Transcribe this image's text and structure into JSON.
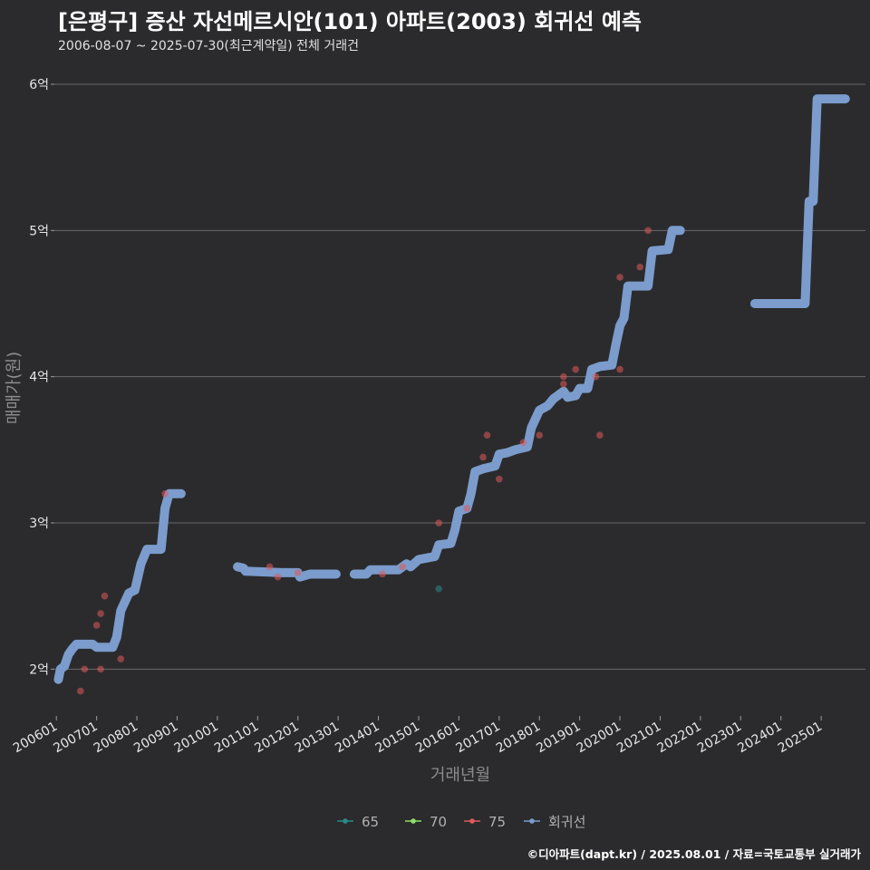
{
  "header": {
    "title": "[은평구] 증산 자선메르시안(101) 아파트(2003) 회귀선 예측",
    "subtitle": "2006-08-07 ~ 2025-07-30(최근계약일) 전체 거래건"
  },
  "footer": {
    "credit": "©디아파트(dapt.kr) / 2025.08.01 / 자료=국토교통부 실거래가"
  },
  "colors": {
    "background": "#2b2b2d",
    "grid": "#6a6a6c",
    "series_65": "#2a8a8a",
    "series_70": "#8ee06a",
    "series_75": "#e05a5a",
    "regression": "#7b9ccc"
  },
  "chart_data": {
    "type": "scatter",
    "title": "[은평구] 증산 자선메르시안(101) 아파트(2003) 회귀선 예측",
    "xlabel": "거래년월",
    "ylabel": "매매가(원)",
    "x_unit": "year",
    "xlim": [
      2005.95,
      2026.1
    ],
    "ylim": [
      1.68,
      6.13
    ],
    "y_ticks": [
      2,
      3,
      4,
      5,
      6
    ],
    "y_tick_labels": [
      "2억",
      "3억",
      "4억",
      "5억",
      "6억"
    ],
    "x_ticks": [
      2006,
      2007,
      2008,
      2009,
      2010,
      2011,
      2012,
      2013,
      2014,
      2015,
      2016,
      2017,
      2018,
      2019,
      2020,
      2021,
      2022,
      2023,
      2024,
      2025
    ],
    "x_tick_labels": [
      "200601",
      "200701",
      "200801",
      "200901",
      "201001",
      "201101",
      "201201",
      "201301",
      "201401",
      "201501",
      "201601",
      "201701",
      "201801",
      "201901",
      "202001",
      "202101",
      "202201",
      "202301",
      "202401",
      "202501"
    ],
    "legend": {
      "position": "bottom",
      "entries": [
        {
          "key": "65",
          "label": "65",
          "color": "#2a8a8a"
        },
        {
          "key": "70",
          "label": "70",
          "color": "#8ee06a"
        },
        {
          "key": "75",
          "label": "75",
          "color": "#e05a5a"
        },
        {
          "key": "reg",
          "label": "회귀선",
          "color": "#7b9ccc"
        }
      ]
    },
    "series": [
      {
        "name": "65",
        "points": [
          [
            2015.5,
            2.55
          ]
        ]
      },
      {
        "name": "70",
        "points": []
      },
      {
        "name": "75",
        "points": [
          [
            2006.6,
            1.85
          ],
          [
            2006.7,
            2.0
          ],
          [
            2007.0,
            2.3
          ],
          [
            2007.1,
            2.38
          ],
          [
            2007.1,
            2.0
          ],
          [
            2007.2,
            2.5
          ],
          [
            2007.6,
            2.07
          ],
          [
            2008.7,
            3.2
          ],
          [
            2011.3,
            2.7
          ],
          [
            2011.5,
            2.63
          ],
          [
            2012.0,
            2.66
          ],
          [
            2014.1,
            2.65
          ],
          [
            2014.6,
            2.7
          ],
          [
            2015.5,
            3.0
          ],
          [
            2016.2,
            3.1
          ],
          [
            2016.6,
            3.45
          ],
          [
            2016.7,
            3.6
          ],
          [
            2017.0,
            3.3
          ],
          [
            2017.6,
            3.55
          ],
          [
            2018.0,
            3.6
          ],
          [
            2018.6,
            3.95
          ],
          [
            2018.6,
            4.0
          ],
          [
            2018.9,
            4.05
          ],
          [
            2019.4,
            4.0
          ],
          [
            2019.5,
            3.6
          ],
          [
            2020.0,
            4.05
          ],
          [
            2020.0,
            4.68
          ],
          [
            2020.5,
            4.75
          ],
          [
            2020.7,
            5.0
          ]
        ]
      },
      {
        "name": "회귀선",
        "segments": [
          [
            [
              2006.05,
              1.93
            ],
            [
              2006.1,
              2.0
            ],
            [
              2006.2,
              2.02
            ],
            [
              2006.3,
              2.1
            ],
            [
              2006.4,
              2.14
            ],
            [
              2006.5,
              2.17
            ],
            [
              2006.9,
              2.17
            ],
            [
              2007.0,
              2.15
            ],
            [
              2007.4,
              2.15
            ],
            [
              2007.5,
              2.22
            ],
            [
              2007.6,
              2.4
            ],
            [
              2007.8,
              2.52
            ],
            [
              2007.95,
              2.54
            ],
            [
              2008.1,
              2.72
            ],
            [
              2008.25,
              2.82
            ],
            [
              2008.6,
              2.82
            ],
            [
              2008.7,
              3.1
            ],
            [
              2008.8,
              3.2
            ],
            [
              2009.1,
              3.2
            ]
          ],
          [
            [
              2010.5,
              2.7
            ],
            [
              2010.65,
              2.69
            ],
            [
              2010.7,
              2.67
            ],
            [
              2011.6,
              2.66
            ],
            [
              2012.0,
              2.66
            ],
            [
              2012.05,
              2.63
            ],
            [
              2012.3,
              2.65
            ],
            [
              2012.95,
              2.65
            ]
          ],
          [
            [
              2013.4,
              2.65
            ],
            [
              2013.7,
              2.65
            ],
            [
              2013.8,
              2.68
            ],
            [
              2014.0,
              2.68
            ],
            [
              2014.5,
              2.68
            ],
            [
              2014.7,
              2.72
            ],
            [
              2014.8,
              2.7
            ],
            [
              2015.0,
              2.75
            ],
            [
              2015.4,
              2.77
            ],
            [
              2015.5,
              2.85
            ],
            [
              2015.8,
              2.86
            ],
            [
              2015.9,
              2.95
            ],
            [
              2016.0,
              3.08
            ],
            [
              2016.2,
              3.1
            ],
            [
              2016.3,
              3.2
            ],
            [
              2016.4,
              3.35
            ],
            [
              2016.6,
              3.37
            ],
            [
              2016.9,
              3.39
            ],
            [
              2017.0,
              3.47
            ],
            [
              2017.2,
              3.48
            ],
            [
              2017.4,
              3.5
            ],
            [
              2017.7,
              3.52
            ],
            [
              2017.8,
              3.65
            ],
            [
              2018.0,
              3.77
            ],
            [
              2018.2,
              3.8
            ],
            [
              2018.35,
              3.85
            ],
            [
              2018.6,
              3.9
            ],
            [
              2018.7,
              3.86
            ],
            [
              2018.9,
              3.87
            ],
            [
              2019.0,
              3.92
            ],
            [
              2019.2,
              3.92
            ],
            [
              2019.3,
              4.05
            ],
            [
              2019.5,
              4.07
            ],
            [
              2019.8,
              4.08
            ],
            [
              2019.9,
              4.22
            ],
            [
              2020.0,
              4.35
            ],
            [
              2020.1,
              4.4
            ],
            [
              2020.2,
              4.62
            ],
            [
              2020.7,
              4.62
            ],
            [
              2020.8,
              4.86
            ],
            [
              2021.2,
              4.87
            ],
            [
              2021.3,
              5.0
            ],
            [
              2021.5,
              5.0
            ]
          ],
          [
            [
              2023.35,
              4.5
            ],
            [
              2024.6,
              4.5
            ],
            [
              2024.7,
              5.2
            ],
            [
              2024.8,
              5.2
            ],
            [
              2024.9,
              5.9
            ],
            [
              2025.6,
              5.9
            ]
          ]
        ]
      }
    ]
  }
}
